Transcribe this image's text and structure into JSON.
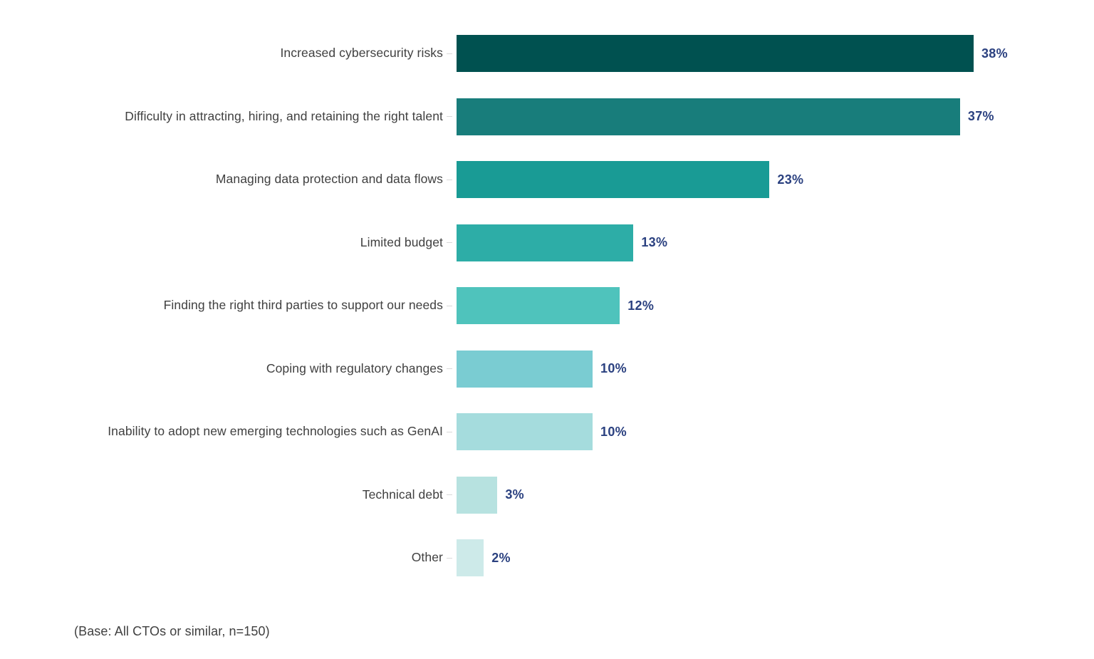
{
  "chart_data": {
    "type": "bar",
    "orientation": "horizontal",
    "title": "",
    "xlabel": "",
    "ylabel": "",
    "unit": "%",
    "xlim": [
      0,
      40
    ],
    "grid": false,
    "legend": "none",
    "categories": [
      "Increased cybersecurity risks",
      "Difficulty in attracting, hiring, and retaining the right talent",
      "Managing data protection and data flows",
      "Limited budget",
      "Finding the right third parties to support our needs",
      "Coping with regulatory changes",
      "Inability to adopt new emerging technologies such as GenAI",
      "Technical debt",
      "Other"
    ],
    "values": [
      38,
      37,
      23,
      13,
      12,
      10,
      10,
      3,
      2
    ],
    "value_labels": [
      "38%",
      "37%",
      "23%",
      "13%",
      "12%",
      "10%",
      "10%",
      "3%",
      "2%"
    ],
    "bar_colors": [
      "#005150",
      "#187d7b",
      "#199b95",
      "#2dada7",
      "#4fc3bc",
      "#7accd2",
      "#a5dcdd",
      "#b7e2e0",
      "#cdeae9"
    ],
    "category_label_color": "#404040",
    "value_label_color": "#2b4180"
  },
  "footer": {
    "base_note": "(Base: All CTOs or similar, n=150)"
  }
}
